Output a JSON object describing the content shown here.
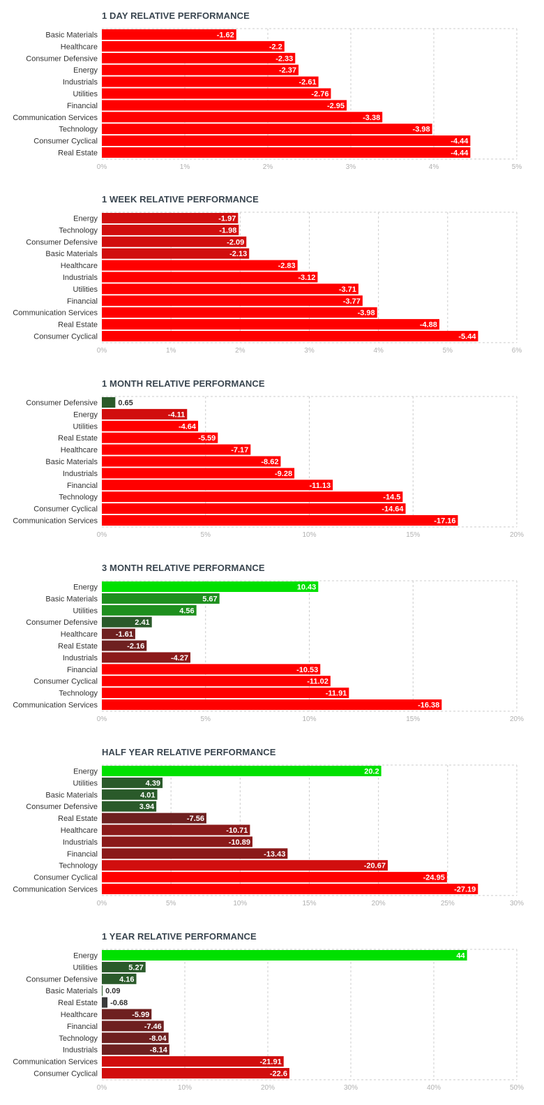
{
  "colors": {
    "bright_red": "#ff0000",
    "dark_red": "#d10e0e",
    "maroon": "#8b1a1a",
    "dark_maroon": "#6e2020",
    "bright_green": "#00e000",
    "green": "#1e8f1e",
    "dark_green": "#2a5a2a",
    "grid": "#cccccc"
  },
  "chart_data": [
    {
      "type": "bar",
      "title": "1 DAY RELATIVE PERFORMANCE",
      "categories": [
        "Basic Materials",
        "Healthcare",
        "Consumer Defensive",
        "Energy",
        "Industrials",
        "Utilities",
        "Financial",
        "Communication Services",
        "Technology",
        "Consumer Cyclical",
        "Real Estate"
      ],
      "values": [
        -1.62,
        -2.2,
        -2.33,
        -2.37,
        -2.61,
        -2.76,
        -2.95,
        -3.38,
        -3.98,
        -4.44,
        -4.44
      ],
      "value_labels": [
        "-1.62",
        "-2.2",
        "-2.33",
        "-2.37",
        "-2.61",
        "-2.76",
        "-2.95",
        "-3.38",
        "-3.98",
        "-4.44",
        "-4.44"
      ],
      "bar_colors": [
        "#ff0000",
        "#ff0000",
        "#ff0000",
        "#ff0000",
        "#ff0000",
        "#ff0000",
        "#ff0000",
        "#ff0000",
        "#ff0000",
        "#ff0000",
        "#ff0000"
      ],
      "xlim": [
        0,
        5
      ],
      "ticks": [
        0,
        1,
        2,
        3,
        4,
        5
      ],
      "tick_labels": [
        "0%",
        "1%",
        "2%",
        "3%",
        "4%",
        "5%"
      ]
    },
    {
      "type": "bar",
      "title": "1 WEEK RELATIVE PERFORMANCE",
      "categories": [
        "Energy",
        "Technology",
        "Consumer Defensive",
        "Basic Materials",
        "Healthcare",
        "Industrials",
        "Utilities",
        "Financial",
        "Communication Services",
        "Real Estate",
        "Consumer Cyclical"
      ],
      "values": [
        -1.97,
        -1.98,
        -2.09,
        -2.13,
        -2.83,
        -3.12,
        -3.71,
        -3.77,
        -3.98,
        -4.88,
        -5.44
      ],
      "value_labels": [
        "-1.97",
        "-1.98",
        "-2.09",
        "-2.13",
        "-2.83",
        "-3.12",
        "-3.71",
        "-3.77",
        "-3.98",
        "-4.88",
        "-5.44"
      ],
      "bar_colors": [
        "#d10e0e",
        "#d10e0e",
        "#d10e0e",
        "#d10e0e",
        "#ff0000",
        "#ff0000",
        "#ff0000",
        "#ff0000",
        "#ff0000",
        "#ff0000",
        "#ff0000"
      ],
      "xlim": [
        0,
        6
      ],
      "ticks": [
        0,
        1,
        2,
        3,
        4,
        5,
        6
      ],
      "tick_labels": [
        "0%",
        "1%",
        "2%",
        "3%",
        "4%",
        "5%",
        "6%"
      ]
    },
    {
      "type": "bar",
      "title": "1 MONTH RELATIVE PERFORMANCE",
      "categories": [
        "Consumer Defensive",
        "Energy",
        "Utilities",
        "Real Estate",
        "Healthcare",
        "Basic Materials",
        "Industrials",
        "Financial",
        "Technology",
        "Consumer Cyclical",
        "Communication Services"
      ],
      "values": [
        0.65,
        -4.11,
        -4.64,
        -5.59,
        -7.17,
        -8.62,
        -9.28,
        -11.13,
        -14.5,
        -14.64,
        -17.16
      ],
      "value_labels": [
        "0.65",
        "-4.11",
        "-4.64",
        "-5.59",
        "-7.17",
        "-8.62",
        "-9.28",
        "-11.13",
        "-14.5",
        "-14.64",
        "-17.16"
      ],
      "bar_colors": [
        "#2a5a2a",
        "#d10e0e",
        "#ff0000",
        "#ff0000",
        "#ff0000",
        "#ff0000",
        "#ff0000",
        "#ff0000",
        "#ff0000",
        "#ff0000",
        "#ff0000"
      ],
      "xlim": [
        0,
        20
      ],
      "ticks": [
        0,
        5,
        10,
        15,
        20
      ],
      "tick_labels": [
        "0%",
        "5%",
        "10%",
        "15%",
        "20%"
      ]
    },
    {
      "type": "bar",
      "title": "3 MONTH RELATIVE PERFORMANCE",
      "categories": [
        "Energy",
        "Basic Materials",
        "Utilities",
        "Consumer Defensive",
        "Healthcare",
        "Real Estate",
        "Industrials",
        "Financial",
        "Consumer Cyclical",
        "Technology",
        "Communication Services"
      ],
      "values": [
        10.43,
        5.67,
        4.56,
        2.41,
        -1.61,
        -2.16,
        -4.27,
        -10.53,
        -11.02,
        -11.91,
        -16.38
      ],
      "value_labels": [
        "10.43",
        "5.67",
        "4.56",
        "2.41",
        "-1.61",
        "-2.16",
        "-4.27",
        "-10.53",
        "-11.02",
        "-11.91",
        "-16.38"
      ],
      "bar_colors": [
        "#00e000",
        "#1e8f1e",
        "#1e8f1e",
        "#2a5a2a",
        "#6e2020",
        "#6e2020",
        "#8b1a1a",
        "#ff0000",
        "#ff0000",
        "#ff0000",
        "#ff0000"
      ],
      "xlim": [
        0,
        20
      ],
      "ticks": [
        0,
        5,
        10,
        15,
        20
      ],
      "tick_labels": [
        "0%",
        "5%",
        "10%",
        "15%",
        "20%"
      ]
    },
    {
      "type": "bar",
      "title": "HALF YEAR RELATIVE PERFORMANCE",
      "categories": [
        "Energy",
        "Utilities",
        "Basic Materials",
        "Consumer Defensive",
        "Real Estate",
        "Healthcare",
        "Industrials",
        "Financial",
        "Technology",
        "Consumer Cyclical",
        "Communication Services"
      ],
      "values": [
        20.2,
        4.39,
        4.01,
        3.94,
        -7.56,
        -10.71,
        -10.89,
        -13.43,
        -20.67,
        -24.95,
        -27.19
      ],
      "value_labels": [
        "20.2",
        "4.39",
        "4.01",
        "3.94",
        "-7.56",
        "-10.71",
        "-10.89",
        "-13.43",
        "-20.67",
        "-24.95",
        "-27.19"
      ],
      "bar_colors": [
        "#00e000",
        "#2a5a2a",
        "#2a5a2a",
        "#2a5a2a",
        "#6e2020",
        "#8b1a1a",
        "#8b1a1a",
        "#8b1a1a",
        "#d10e0e",
        "#ff0000",
        "#ff0000"
      ],
      "xlim": [
        0,
        30
      ],
      "ticks": [
        0,
        5,
        10,
        15,
        20,
        25,
        30
      ],
      "tick_labels": [
        "0%",
        "5%",
        "10%",
        "15%",
        "20%",
        "25%",
        "30%"
      ]
    },
    {
      "type": "bar",
      "title": "1 YEAR RELATIVE PERFORMANCE",
      "categories": [
        "Energy",
        "Utilities",
        "Consumer Defensive",
        "Basic Materials",
        "Real Estate",
        "Healthcare",
        "Financial",
        "Technology",
        "Industrials",
        "Communication Services",
        "Consumer Cyclical"
      ],
      "values": [
        44,
        5.27,
        4.16,
        0.09,
        -0.68,
        -5.99,
        -7.46,
        -8.04,
        -8.14,
        -21.91,
        -22.6
      ],
      "value_labels": [
        "44",
        "5.27",
        "4.16",
        "0.09",
        "-0.68",
        "-5.99",
        "-7.46",
        "-8.04",
        "-8.14",
        "-21.91",
        "-22.6"
      ],
      "bar_colors": [
        "#00e000",
        "#2a5a2a",
        "#2a5a2a",
        "#2a5a2a",
        "#3a3a3a",
        "#6e2020",
        "#6e2020",
        "#6e2020",
        "#6e2020",
        "#d10e0e",
        "#d10e0e"
      ],
      "xlim": [
        0,
        50
      ],
      "ticks": [
        0,
        10,
        20,
        30,
        40,
        50
      ],
      "tick_labels": [
        "0%",
        "10%",
        "20%",
        "30%",
        "40%",
        "50%"
      ]
    }
  ]
}
